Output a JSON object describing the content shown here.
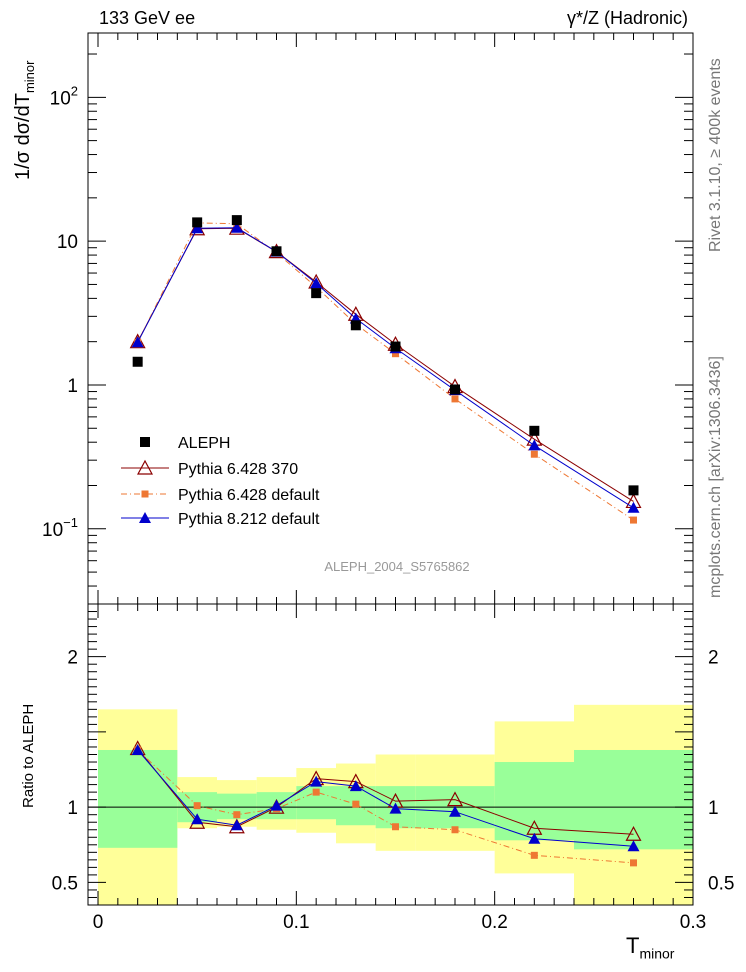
{
  "header": {
    "energy_label": "133 GeV ee",
    "process_label": "γ*/Z (Hadronic)"
  },
  "side_labels": {
    "rivet": "Rivet 3.1.10, ≥ 400k events",
    "source": "mcplots.cern.ch [arXiv:1306.3436]"
  },
  "chart_data": [
    {
      "type": "scatter",
      "panel": "main",
      "yscale": "log",
      "ylabel_main": "1/σ  dσ/dT",
      "ylabel_sub": "minor",
      "xlim": [
        0,
        0.3
      ],
      "ylim": [
        0.03,
        280
      ],
      "yticks": [
        {
          "value": 0.1,
          "label": "10",
          "exp": "−1"
        },
        {
          "value": 1,
          "label": "1",
          "exp": ""
        },
        {
          "value": 10,
          "label": "10",
          "exp": ""
        },
        {
          "value": 100,
          "label": "10",
          "exp": "2"
        }
      ],
      "watermark": "ALEPH_2004_S5765862",
      "legend_position": "bottom-left",
      "series": [
        {
          "name": "ALEPH",
          "style": "data",
          "color": "#000000",
          "marker": "square",
          "x": [
            0.02,
            0.05,
            0.07,
            0.09,
            0.11,
            0.13,
            0.15,
            0.18,
            0.22,
            0.27
          ],
          "values": [
            1.45,
            13.5,
            14.0,
            8.5,
            4.35,
            2.6,
            1.85,
            0.93,
            0.48,
            0.185
          ]
        },
        {
          "name": "Pythia 6.428 370",
          "style": "solid",
          "color": "#8b0000",
          "marker": "open-triangle",
          "x": [
            0.02,
            0.05,
            0.07,
            0.09,
            0.11,
            0.13,
            0.15,
            0.18,
            0.22,
            0.27
          ],
          "values": [
            2.0,
            12.2,
            12.3,
            8.45,
            5.2,
            3.1,
            1.92,
            0.975,
            0.42,
            0.155
          ]
        },
        {
          "name": "Pythia 6.428 default",
          "style": "dashdot",
          "color": "#ee7733",
          "marker": "square",
          "x": [
            0.02,
            0.05,
            0.07,
            0.09,
            0.11,
            0.13,
            0.15,
            0.18,
            0.22,
            0.27
          ],
          "values": [
            1.98,
            13.4,
            13.2,
            8.3,
            4.8,
            2.65,
            1.65,
            0.8,
            0.33,
            0.115
          ]
        },
        {
          "name": "Pythia 8.212 default",
          "style": "solid",
          "color": "#0000cc",
          "marker": "triangle",
          "x": [
            0.02,
            0.05,
            0.07,
            0.09,
            0.11,
            0.13,
            0.15,
            0.18,
            0.22,
            0.27
          ],
          "values": [
            1.98,
            12.3,
            12.4,
            8.45,
            5.1,
            2.9,
            1.8,
            0.92,
            0.38,
            0.14
          ]
        }
      ]
    },
    {
      "type": "line",
      "panel": "ratio",
      "ylabel": "Ratio to ALEPH",
      "xlabel_main": "T",
      "xlabel_sub": "minor",
      "xlim": [
        0,
        0.3
      ],
      "ylim": [
        0.35,
        2.35
      ],
      "xticks": [
        {
          "value": 0,
          "label": "0"
        },
        {
          "value": 0.1,
          "label": "0.1"
        },
        {
          "value": 0.2,
          "label": "0.2"
        },
        {
          "value": 0.3,
          "label": "0.3"
        }
      ],
      "yticks": [
        {
          "value": 0.5,
          "label": "0.5"
        },
        {
          "value": 1,
          "label": "1"
        },
        {
          "value": 2,
          "label": "2"
        }
      ],
      "bands": {
        "bins": [
          [
            0.0,
            0.04
          ],
          [
            0.04,
            0.06
          ],
          [
            0.06,
            0.08
          ],
          [
            0.08,
            0.1
          ],
          [
            0.1,
            0.12
          ],
          [
            0.12,
            0.14
          ],
          [
            0.14,
            0.16
          ],
          [
            0.16,
            0.2
          ],
          [
            0.2,
            0.24
          ],
          [
            0.24,
            0.3
          ]
        ],
        "stat_color": "#99ff99",
        "total_color": "#ffff99",
        "stat_low": [
          0.73,
          0.9,
          0.92,
          0.92,
          0.92,
          0.88,
          0.86,
          0.86,
          0.78,
          0.72
        ],
        "stat_high": [
          1.38,
          1.1,
          1.09,
          1.1,
          1.14,
          1.14,
          1.14,
          1.14,
          1.3,
          1.38
        ],
        "total_low": [
          0.35,
          0.86,
          0.87,
          0.85,
          0.83,
          0.76,
          0.71,
          0.71,
          0.56,
          0.35
        ],
        "total_high": [
          1.65,
          1.2,
          1.18,
          1.2,
          1.26,
          1.29,
          1.35,
          1.35,
          1.57,
          1.68
        ]
      },
      "series": [
        {
          "name": "Pythia 6.428 370",
          "style": "solid",
          "color": "#8b0000",
          "marker": "open-triangle",
          "x": [
            0.02,
            0.05,
            0.07,
            0.09,
            0.11,
            0.13,
            0.15,
            0.18,
            0.22,
            0.27
          ],
          "values": [
            1.39,
            0.9,
            0.87,
            1.0,
            1.19,
            1.17,
            1.04,
            1.05,
            0.86,
            0.82
          ]
        },
        {
          "name": "Pythia 6.428 default",
          "style": "dashdot",
          "color": "#ee7733",
          "marker": "square",
          "x": [
            0.02,
            0.05,
            0.07,
            0.09,
            0.11,
            0.13,
            0.15,
            0.18,
            0.22,
            0.27
          ],
          "values": [
            1.38,
            1.01,
            0.95,
            0.99,
            1.1,
            1.02,
            0.87,
            0.85,
            0.68,
            0.63
          ]
        },
        {
          "name": "Pythia 8.212 default",
          "style": "solid",
          "color": "#0000cc",
          "marker": "triangle",
          "x": [
            0.02,
            0.05,
            0.07,
            0.09,
            0.11,
            0.13,
            0.15,
            0.18,
            0.22,
            0.27
          ],
          "values": [
            1.38,
            0.92,
            0.88,
            1.01,
            1.17,
            1.14,
            0.99,
            0.97,
            0.79,
            0.74
          ]
        }
      ]
    }
  ]
}
